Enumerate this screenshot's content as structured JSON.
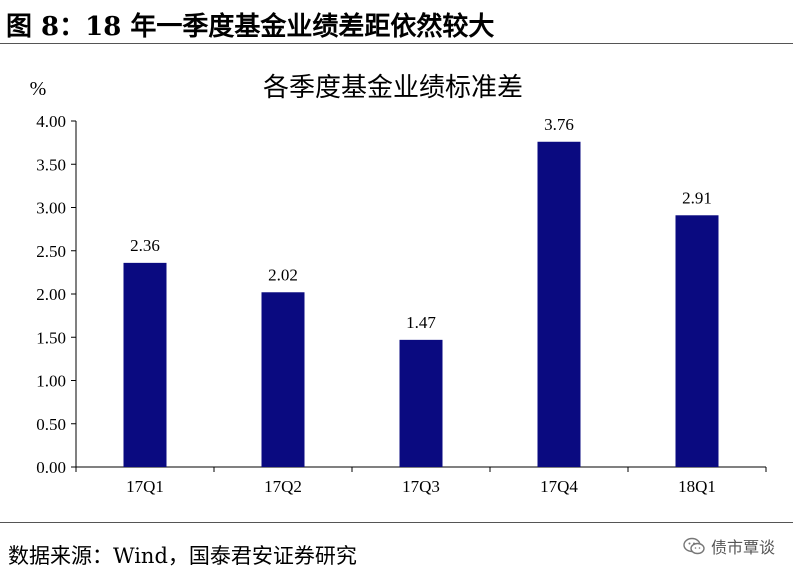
{
  "figure_title": "图 8：18 年一季度基金业绩差距依然较大",
  "source_note": "数据来源：Wind，国泰君安证券研究",
  "watermark": "债市覃谈",
  "colors": {
    "bar": "#0a0a80",
    "axis": "#000000"
  },
  "chart_data": {
    "type": "bar",
    "title": "各季度基金业绩标准差",
    "ylabel": "%",
    "xlabel": "",
    "categories": [
      "17Q1",
      "17Q2",
      "17Q3",
      "17Q4",
      "18Q1"
    ],
    "values": [
      2.36,
      2.02,
      1.47,
      3.76,
      2.91
    ],
    "data_labels": [
      "2.36",
      "2.02",
      "1.47",
      "3.76",
      "2.91"
    ],
    "ylim": [
      0,
      4.0
    ],
    "yticks": [
      "0.00",
      "0.50",
      "1.00",
      "1.50",
      "2.00",
      "2.50",
      "3.00",
      "3.50",
      "4.00"
    ],
    "grid": false,
    "legend": "none"
  }
}
